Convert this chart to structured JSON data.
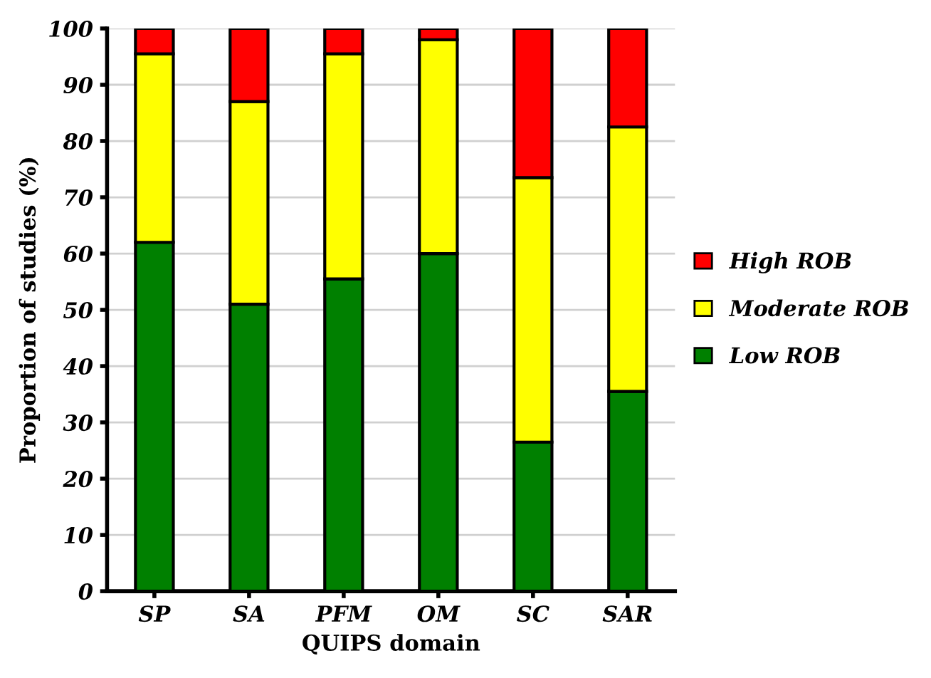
{
  "chart_data": {
    "type": "bar",
    "stacked": true,
    "xlabel": "QUIPS domain",
    "ylabel": "Proportion of studies (%)",
    "categories": [
      "SP",
      "SA",
      "PFM",
      "OM",
      "SC",
      "SAR"
    ],
    "series": [
      {
        "name": "Low ROB",
        "color": "#008000",
        "values": [
          62,
          51,
          55.5,
          60,
          26.5,
          35.5
        ]
      },
      {
        "name": "Moderate ROB",
        "color": "#ffff00",
        "values": [
          33.5,
          36,
          40,
          38,
          47,
          47
        ]
      },
      {
        "name": "High ROB",
        "color": "#ff0000",
        "values": [
          4.5,
          13,
          4.5,
          2,
          26.5,
          17.5
        ]
      }
    ],
    "ylim": [
      0,
      100
    ],
    "yticks": [
      0,
      10,
      20,
      30,
      40,
      50,
      60,
      70,
      80,
      90,
      100
    ],
    "grid": "y",
    "legend": "right"
  }
}
